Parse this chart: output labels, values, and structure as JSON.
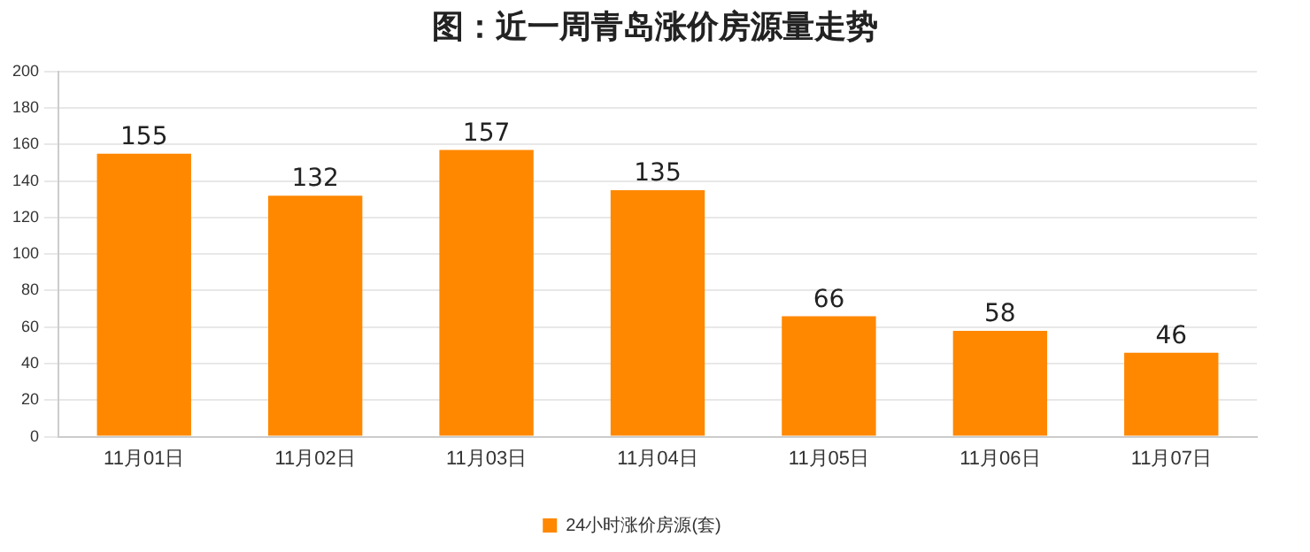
{
  "chart_data": {
    "type": "bar",
    "title": "图：近一周青岛涨价房源量走势",
    "categories": [
      "11月01日",
      "11月02日",
      "11月03日",
      "11月04日",
      "11月05日",
      "11月06日",
      "11月07日"
    ],
    "series": [
      {
        "name": "24小时涨价房源(套)",
        "color": "#ff8800",
        "values": [
          155,
          132,
          157,
          135,
          66,
          58,
          46
        ]
      }
    ],
    "ylim": [
      0,
      200
    ],
    "yticks": [
      0,
      20,
      40,
      60,
      80,
      100,
      120,
      140,
      160,
      180,
      200
    ],
    "grid": "y",
    "legend": "bottom",
    "data_labels": true
  }
}
